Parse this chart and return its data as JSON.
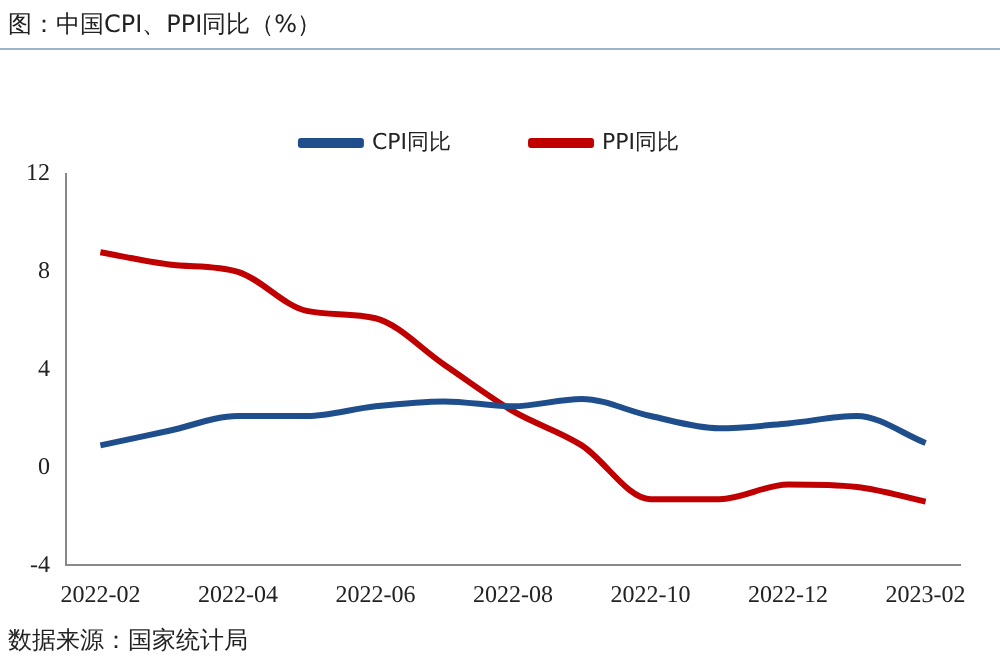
{
  "chart_data": {
    "type": "line",
    "title": "图：中国CPI、PPI同比（%）",
    "annotations": [
      "数据来源：国家统计局"
    ],
    "categories": [
      "2022-02",
      null,
      "2022-04",
      null,
      "2022-06",
      null,
      "2022-08",
      null,
      "2022-10",
      null,
      "2022-12",
      null,
      "2023-02"
    ],
    "series": [
      {
        "name": "CPI同比",
        "color": "#1f4e8c",
        "values": [
          0.9,
          1.5,
          2.1,
          2.1,
          2.5,
          2.7,
          2.5,
          2.8,
          2.1,
          1.6,
          1.8,
          2.1,
          1.0
        ]
      },
      {
        "name": "PPI同比",
        "color": "#c00000",
        "values": [
          8.8,
          8.3,
          8.0,
          6.4,
          6.1,
          4.2,
          2.3,
          0.9,
          -1.3,
          -1.3,
          -0.7,
          -0.8,
          -1.4
        ]
      }
    ],
    "ylim": [
      -4,
      12
    ],
    "yticks": [
      -4,
      0,
      4,
      8,
      12
    ],
    "grid": false,
    "legend": "top",
    "marker": "none",
    "line_style": "solid"
  }
}
